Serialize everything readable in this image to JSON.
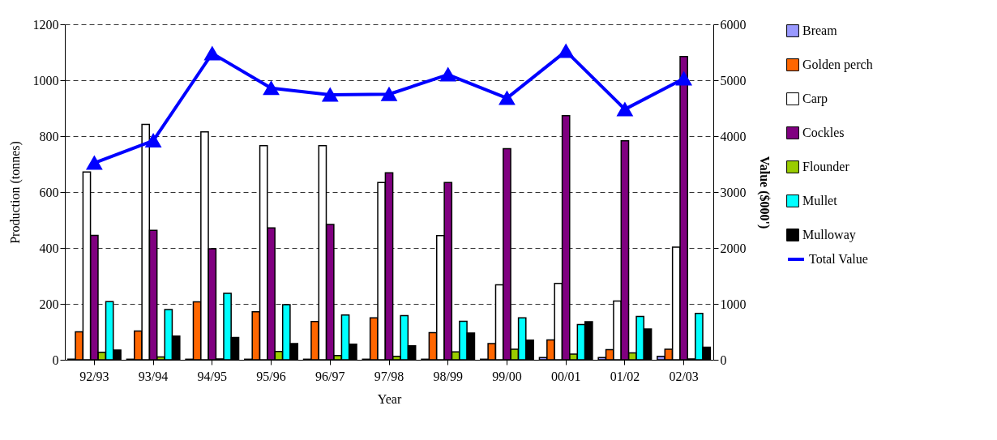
{
  "chart_data": {
    "type": "bar",
    "xlabel": "Year",
    "ylabel": "Production (tonnes)",
    "y2label": "Value ($000')",
    "categories": [
      "92/93",
      "93/94",
      "94/95",
      "95/96",
      "96/97",
      "97/98",
      "98/99",
      "99/00",
      "00/01",
      "01/02",
      "02/03"
    ],
    "ylim": [
      0,
      1200
    ],
    "yticks": [
      0,
      200,
      400,
      600,
      800,
      1000,
      1200
    ],
    "y2lim": [
      0,
      6000
    ],
    "y2ticks": [
      0,
      1000,
      2000,
      3000,
      4000,
      5000,
      6000
    ],
    "grid": "y",
    "legend": "right",
    "marker": "triangle",
    "line_style": "solid",
    "series": [
      {
        "name": "Bream",
        "color": "#9999ff",
        "values": [
          2,
          2,
          2,
          2,
          2,
          2,
          2,
          2,
          8,
          8,
          12
        ]
      },
      {
        "name": "Golden perch",
        "color": "#ff6600",
        "values": [
          100,
          103,
          207,
          172,
          137,
          150,
          97,
          58,
          71,
          36,
          38
        ]
      },
      {
        "name": "Carp",
        "color": "#ffffff",
        "values": [
          672,
          842,
          815,
          766,
          766,
          634,
          444,
          268,
          273,
          210,
          403
        ]
      },
      {
        "name": "Cockles",
        "color": "#800080",
        "values": [
          445,
          463,
          397,
          472,
          484,
          669,
          634,
          755,
          873,
          783,
          1085
        ]
      },
      {
        "name": "Flounder",
        "color": "#99cc00",
        "values": [
          27,
          10,
          3,
          30,
          15,
          12,
          28,
          38,
          20,
          25,
          3
        ]
      },
      {
        "name": "Mullet",
        "color": "#00ffff",
        "values": [
          208,
          180,
          238,
          197,
          160,
          158,
          138,
          150,
          126,
          155,
          166
        ]
      },
      {
        "name": "Mulloway",
        "color": "#000000",
        "values": [
          35,
          85,
          80,
          58,
          56,
          50,
          96,
          70,
          136,
          110,
          45
        ]
      },
      {
        "name": "Total Value",
        "type": "line",
        "axis": "y2",
        "color": "#0000ff",
        "values": [
          3520,
          3920,
          5480,
          4860,
          4740,
          4750,
          5100,
          4680,
          5520,
          4480,
          5030
        ]
      }
    ]
  }
}
